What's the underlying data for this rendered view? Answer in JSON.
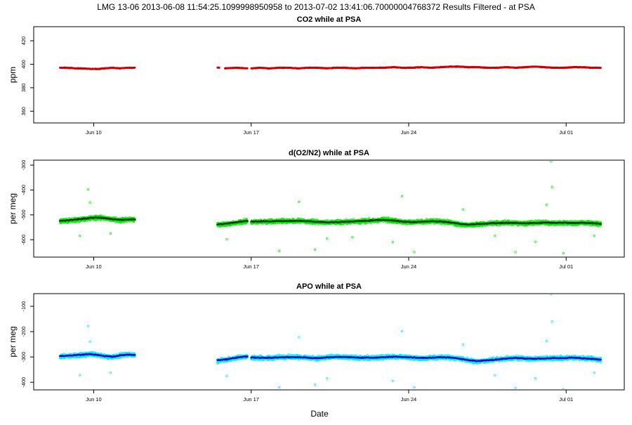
{
  "figure": {
    "title": "LMG   13-06    2013-06-08 11:54:25.1099998950958 to 2013-07-02 13:41:06.70000004768372   Results Filtered - at PSA",
    "xlabel": "Date"
  },
  "colors": {
    "co2_points": "#cc0000",
    "o2n2_points": "#00ee00",
    "o2n2_smooth": "#003300",
    "apo_points": "#00eeee",
    "apo_smooth": "#0000cc"
  },
  "chart_data": [
    {
      "type": "scatter",
      "title": "CO2 while at PSA",
      "xlabel": "",
      "ylabel": "ppm",
      "xlim": [
        "2013-06-07T08:00",
        "2013-07-03T14:00"
      ],
      "ylim": [
        350,
        432
      ],
      "yticks": [
        360,
        380,
        400,
        420
      ],
      "xticks": [
        {
          "date": "2013-06-10",
          "label": "Jun 10"
        },
        {
          "date": "2013-06-17",
          "label": "Jun 17"
        },
        {
          "date": "2013-06-24",
          "label": "Jun 24"
        },
        {
          "date": "2013-07-01",
          "label": "Jul 01"
        }
      ],
      "grid": false,
      "series": [
        {
          "role": "measurements",
          "segments": [
            {
              "start": "2013-06-08T12:00",
              "end": "2013-06-11T20:00",
              "values": [
                397,
                397,
                396.5,
                396.5,
                396,
                396,
                396.5,
                397,
                396.5,
                397,
                397
              ]
            },
            {
              "start": "2013-06-15T12:00",
              "end": "2013-06-15T14:00",
              "values": [
                397
              ]
            },
            {
              "start": "2013-06-15T20:00",
              "end": "2013-06-16T20:00",
              "values": [
                396.5,
                397,
                396.5
              ]
            },
            {
              "start": "2013-06-17T00:00",
              "end": "2013-07-02T13:00",
              "values": [
                396.5,
                397,
                396.5,
                397,
                397,
                396.5,
                397,
                397,
                396.5,
                397,
                397,
                396.5,
                397,
                397,
                397,
                397.5,
                397,
                397,
                397.5,
                397,
                397.5,
                398,
                398,
                397.5,
                397.5,
                397,
                397,
                397.5,
                397,
                397.5,
                398,
                397.5,
                397,
                397,
                397.5,
                397.5,
                397,
                397
              ]
            }
          ]
        }
      ]
    },
    {
      "type": "scatter",
      "title": "d(O2/N2) while at PSA",
      "xlabel": "",
      "ylabel": "per meg",
      "xlim": [
        "2013-06-07T08:00",
        "2013-07-03T14:00"
      ],
      "ylim": [
        -670,
        -280
      ],
      "yticks": [
        -300,
        -400,
        -500,
        -600
      ],
      "xticks": [
        {
          "date": "2013-06-10",
          "label": "Jun 10"
        },
        {
          "date": "2013-06-17",
          "label": "Jun 17"
        },
        {
          "date": "2013-06-24",
          "label": "Jun 24"
        },
        {
          "date": "2013-07-01",
          "label": "Jul 01"
        }
      ],
      "grid": false,
      "series": [
        {
          "role": "measurements",
          "segments": [
            {
              "start": "2013-06-08T12:00",
              "end": "2013-06-11T20:00",
              "values": [
                -525,
                -523,
                -521,
                -518,
                -514,
                -512,
                -513,
                -518,
                -522,
                -520,
                -518
              ]
            },
            {
              "start": "2013-06-15T12:00",
              "end": "2013-06-16T20:00",
              "values": [
                -540,
                -537,
                -530,
                -525
              ]
            },
            {
              "start": "2013-06-17T00:00",
              "end": "2013-07-02T13:00",
              "values": [
                -528,
                -526,
                -527,
                -525,
                -526,
                -524,
                -527,
                -529,
                -531,
                -530,
                -528,
                -527,
                -525,
                -522,
                -519,
                -524,
                -528,
                -530,
                -528,
                -526,
                -527,
                -531,
                -538,
                -541,
                -538,
                -535,
                -533,
                -532,
                -534,
                -535,
                -533,
                -531,
                -533,
                -532,
                -534,
                -532,
                -533,
                -537
              ]
            }
          ]
        },
        {
          "role": "smoothed",
          "segments": [
            {
              "start": "2013-06-08T12:00",
              "end": "2013-06-11T20:00",
              "values": [
                -524,
                -522,
                -519,
                -516,
                -513,
                -511,
                -513,
                -517,
                -520,
                -519,
                -518
              ]
            },
            {
              "start": "2013-06-15T12:00",
              "end": "2013-06-16T20:00",
              "values": [
                -538,
                -535,
                -529,
                -524
              ]
            },
            {
              "start": "2013-06-17T00:00",
              "end": "2013-07-02T13:00",
              "values": [
                -527,
                -526,
                -526,
                -525,
                -525,
                -524,
                -526,
                -528,
                -530,
                -529,
                -528,
                -526,
                -524,
                -522,
                -520,
                -523,
                -527,
                -529,
                -528,
                -526,
                -527,
                -530,
                -536,
                -539,
                -537,
                -535,
                -533,
                -532,
                -533,
                -534,
                -533,
                -531,
                -532,
                -532,
                -533,
                -532,
                -533,
                -536
              ]
            }
          ]
        }
      ],
      "outliers": [
        {
          "date": "2013-06-09T18:00",
          "value": -398
        },
        {
          "date": "2013-06-09T20:00",
          "value": -450
        },
        {
          "date": "2013-06-09T09:00",
          "value": -585
        },
        {
          "date": "2013-06-10T18:00",
          "value": -575
        },
        {
          "date": "2013-06-15T22:00",
          "value": -598
        },
        {
          "date": "2013-06-18T06:00",
          "value": -645
        },
        {
          "date": "2013-06-19T03:00",
          "value": -448
        },
        {
          "date": "2013-06-19T20:00",
          "value": -640
        },
        {
          "date": "2013-06-20T09:00",
          "value": -595
        },
        {
          "date": "2013-06-21T12:00",
          "value": -590
        },
        {
          "date": "2013-06-23T07:00",
          "value": -610
        },
        {
          "date": "2013-06-23T17:00",
          "value": -425
        },
        {
          "date": "2013-06-24T06:00",
          "value": -650
        },
        {
          "date": "2013-06-26T10:00",
          "value": -478
        },
        {
          "date": "2013-06-27T20:00",
          "value": -585
        },
        {
          "date": "2013-06-28T18:00",
          "value": -650
        },
        {
          "date": "2013-06-29T15:00",
          "value": -608
        },
        {
          "date": "2013-06-30T03:00",
          "value": -460
        },
        {
          "date": "2013-06-30T08:00",
          "value": -285
        },
        {
          "date": "2013-06-30T09:00",
          "value": -388
        },
        {
          "date": "2013-06-30T21:00",
          "value": -655
        },
        {
          "date": "2013-07-02T06:00",
          "value": -585
        }
      ]
    },
    {
      "type": "scatter",
      "title": "APO while at PSA",
      "xlabel": "",
      "ylabel": "per meg",
      "xlim": [
        "2013-06-07T08:00",
        "2013-07-03T14:00"
      ],
      "ylim": [
        -430,
        -50
      ],
      "yticks": [
        -100,
        -200,
        -300,
        -400
      ],
      "xticks": [
        {
          "date": "2013-06-10",
          "label": "Jun 10"
        },
        {
          "date": "2013-06-17",
          "label": "Jun 17"
        },
        {
          "date": "2013-06-24",
          "label": "Jun 24"
        },
        {
          "date": "2013-07-01",
          "label": "Jul 01"
        }
      ],
      "grid": false,
      "series": [
        {
          "role": "measurements",
          "segments": [
            {
              "start": "2013-06-08T12:00",
              "end": "2013-06-11T20:00",
              "values": [
                -298,
                -296,
                -294,
                -292,
                -288,
                -292,
                -298,
                -300,
                -294,
                -290,
                -292
              ]
            },
            {
              "start": "2013-06-15T12:00",
              "end": "2013-06-16T20:00",
              "values": [
                -315,
                -310,
                -302,
                -298
              ]
            },
            {
              "start": "2013-06-17T00:00",
              "end": "2013-07-02T13:00",
              "values": [
                -302,
                -303,
                -304,
                -302,
                -300,
                -301,
                -304,
                -306,
                -302,
                -299,
                -300,
                -302,
                -304,
                -303,
                -301,
                -298,
                -300,
                -303,
                -305,
                -303,
                -301,
                -302,
                -306,
                -314,
                -318,
                -314,
                -310,
                -306,
                -304,
                -306,
                -308,
                -306,
                -304,
                -305,
                -303,
                -305,
                -307,
                -312
              ]
            }
          ]
        },
        {
          "role": "smoothed",
          "segments": [
            {
              "start": "2013-06-08T12:00",
              "end": "2013-06-11T20:00",
              "values": [
                -297,
                -295,
                -293,
                -291,
                -289,
                -292,
                -297,
                -299,
                -294,
                -291,
                -292
              ]
            },
            {
              "start": "2013-06-15T12:00",
              "end": "2013-06-16T20:00",
              "values": [
                -313,
                -309,
                -302,
                -298
              ]
            },
            {
              "start": "2013-06-17T00:00",
              "end": "2013-07-02T13:00",
              "values": [
                -302,
                -303,
                -303,
                -302,
                -301,
                -301,
                -303,
                -305,
                -302,
                -300,
                -300,
                -302,
                -303,
                -303,
                -301,
                -299,
                -300,
                -302,
                -304,
                -303,
                -301,
                -302,
                -306,
                -313,
                -316,
                -313,
                -310,
                -306,
                -304,
                -306,
                -307,
                -306,
                -304,
                -305,
                -303,
                -305,
                -307,
                -311
              ]
            }
          ]
        }
      ],
      "outliers": [
        {
          "date": "2013-06-09T18:00",
          "value": -178
        },
        {
          "date": "2013-06-09T20:00",
          "value": -240
        },
        {
          "date": "2013-06-09T09:00",
          "value": -372
        },
        {
          "date": "2013-06-10T18:00",
          "value": -362
        },
        {
          "date": "2013-06-15T22:00",
          "value": -375
        },
        {
          "date": "2013-06-18T06:00",
          "value": -420
        },
        {
          "date": "2013-06-19T03:00",
          "value": -222
        },
        {
          "date": "2013-06-19T20:00",
          "value": -410
        },
        {
          "date": "2013-06-20T09:00",
          "value": -385
        },
        {
          "date": "2013-06-23T07:00",
          "value": -395
        },
        {
          "date": "2013-06-23T17:00",
          "value": -198
        },
        {
          "date": "2013-06-24T06:00",
          "value": -420
        },
        {
          "date": "2013-06-26T10:00",
          "value": -252
        },
        {
          "date": "2013-06-27T20:00",
          "value": -372
        },
        {
          "date": "2013-06-28T18:00",
          "value": -422
        },
        {
          "date": "2013-06-29T15:00",
          "value": -385
        },
        {
          "date": "2013-06-30T03:00",
          "value": -238
        },
        {
          "date": "2013-06-30T08:00",
          "value": -52
        },
        {
          "date": "2013-06-30T09:00",
          "value": -160
        },
        {
          "date": "2013-06-30T21:00",
          "value": -428
        },
        {
          "date": "2013-07-02T06:00",
          "value": -362
        }
      ]
    }
  ]
}
